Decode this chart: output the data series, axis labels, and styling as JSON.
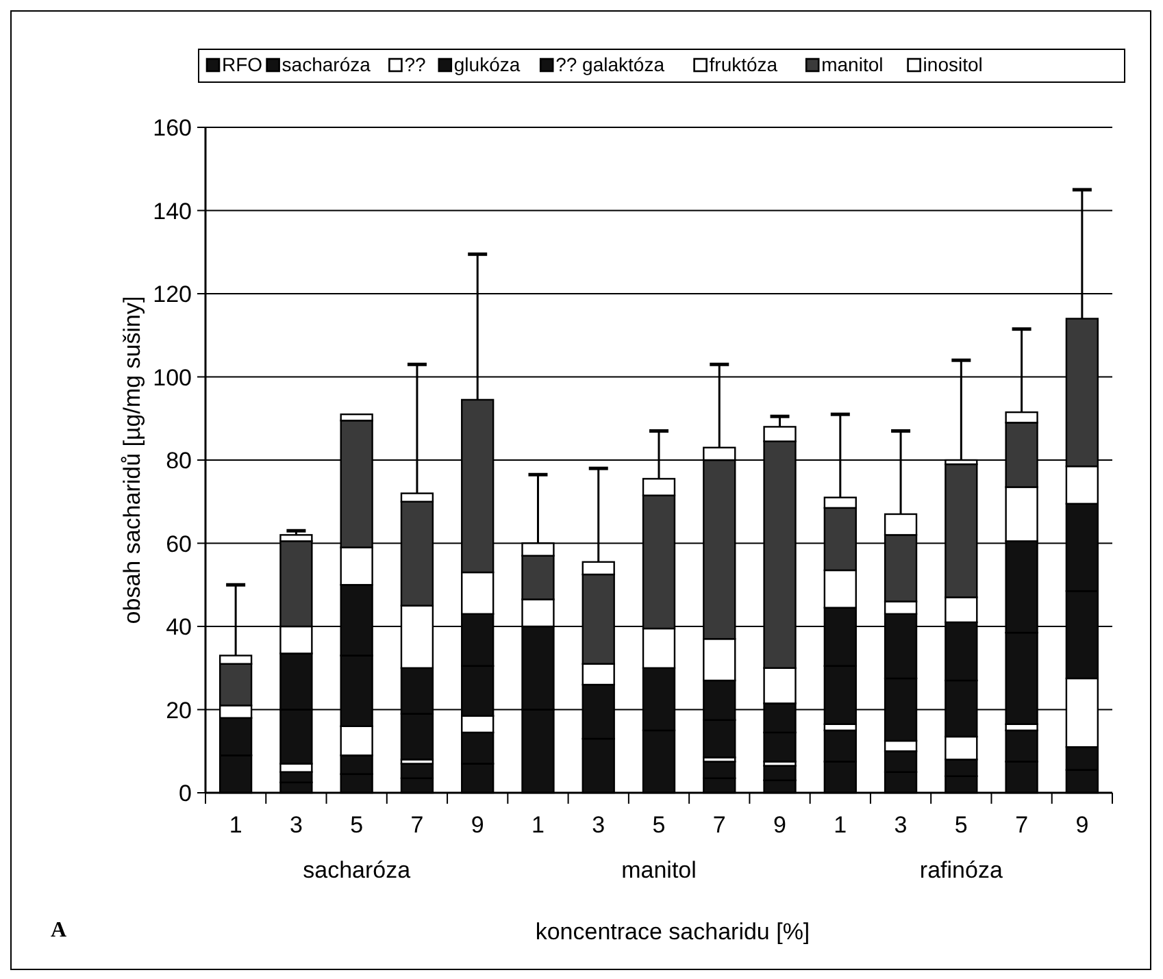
{
  "chart_data": {
    "type": "bar",
    "stacked": true,
    "xlabel": "koncentrace sacharidu [%]",
    "ylabel": "obsah sacharidů [µg/mg sušiny]",
    "categories": [
      "1",
      "3",
      "5",
      "7",
      "9",
      "1",
      "3",
      "5",
      "7",
      "9",
      "1",
      "3",
      "5",
      "7",
      "9"
    ],
    "ylim": [
      0,
      160
    ],
    "yticks": [
      0,
      20,
      40,
      60,
      80,
      100,
      120,
      140,
      160
    ],
    "grid": "y",
    "legend": "top",
    "annotations": [
      "sacharóza",
      "manitol",
      "rafinóza",
      "A"
    ],
    "series": [
      {
        "name": "RFO",
        "color": "#111111",
        "values": [
          9,
          2.5,
          4.5,
          3.5,
          7,
          20,
          13,
          15,
          3.5,
          3,
          7.5,
          5,
          4,
          7.5,
          5.5
        ]
      },
      {
        "name": "sacharóza",
        "color": "#111111",
        "values": [
          9,
          2.5,
          4.5,
          3.5,
          7.5,
          20,
          13,
          15,
          4,
          3.5,
          7.5,
          5,
          4,
          7.5,
          5.5
        ]
      },
      {
        "name": "??",
        "color": "#ffffff",
        "values": [
          0,
          2,
          7,
          1,
          4,
          0,
          0,
          0,
          1,
          1,
          1.5,
          2.5,
          5.5,
          1.5,
          16.5
        ]
      },
      {
        "name": "glukóza",
        "color": "#111111",
        "values": [
          0,
          13,
          17,
          11,
          12,
          0,
          0,
          0,
          9,
          7,
          14,
          15,
          13.5,
          22,
          21
        ]
      },
      {
        "name": "?? galaktóza",
        "color": "#111111",
        "values": [
          0,
          13.5,
          17,
          11,
          12.5,
          0,
          0,
          0,
          9.5,
          7,
          14,
          15.5,
          14,
          22,
          21
        ]
      },
      {
        "name": "fruktóza",
        "color": "#ffffff",
        "values": [
          3,
          6.5,
          9,
          15,
          10,
          6.5,
          5,
          9.5,
          10,
          8.5,
          9,
          3,
          6,
          13,
          9
        ]
      },
      {
        "name": "manitol",
        "color": "#3a3a3a",
        "values": [
          10,
          20.5,
          30.5,
          25,
          41.5,
          10.5,
          21.5,
          32,
          43,
          54.5,
          15,
          16,
          32,
          15.5,
          35.5
        ]
      },
      {
        "name": "inositol",
        "color": "#ffffff",
        "values": [
          2,
          1.5,
          1.5,
          2,
          0,
          3,
          3,
          4,
          3,
          3.5,
          2.5,
          5,
          1,
          2.5,
          0
        ],
        "errors": [
          [
            33,
            50
          ],
          [
            62,
            63
          ],
          null,
          [
            72,
            103
          ],
          [
            94.5,
            129.5
          ],
          [
            60,
            76.5
          ],
          [
            55.5,
            78
          ],
          [
            75.5,
            87
          ],
          [
            83,
            103
          ],
          [
            88,
            90.5
          ],
          [
            71,
            91
          ],
          [
            67,
            87
          ],
          [
            80,
            104
          ],
          [
            91.5,
            111.5
          ],
          [
            114,
            145
          ]
        ]
      }
    ]
  }
}
